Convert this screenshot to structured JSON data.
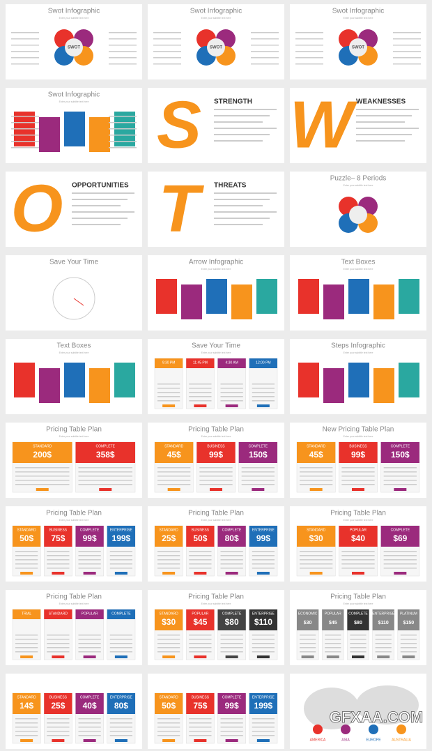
{
  "slides": [
    {
      "title": "Swot Infographic",
      "subtitle": "Enter your subtitle text here",
      "center": "SWOT"
    },
    {
      "title": "Swot Infographic",
      "subtitle": "Enter your subtitle text here",
      "center": "SWOT"
    },
    {
      "title": "Swot Infographic",
      "subtitle": "Enter your subtitle text here",
      "center": "SWOT"
    },
    {
      "title": "Swot Infographic",
      "subtitle": "Enter your subtitle text here"
    },
    {
      "title": "STRENGTH",
      "letter": "S"
    },
    {
      "title": "WEAKNESSES",
      "letter": "W"
    },
    {
      "title": "OPPORTUNITIES",
      "letter": "O"
    },
    {
      "title": "THREATS",
      "letter": "T"
    },
    {
      "title": "Puzzle– 8 Periods",
      "subtitle": "Enter your subtitle text here"
    },
    {
      "title": "Save Your Time"
    },
    {
      "title": "Arrow Infographic",
      "subtitle": "Enter your subtitle text here"
    },
    {
      "title": "Text Boxes",
      "subtitle": "Enter your subtitle text here"
    },
    {
      "title": "Text Boxes",
      "subtitle": "Enter your subtitle text here"
    },
    {
      "title": "Save Your Time",
      "subtitle": "Enter your subtitle text here",
      "cards": [
        {
          "name": "9:30 PM",
          "color": "#f7941d"
        },
        {
          "name": "11:45 PM",
          "color": "#e8322b"
        },
        {
          "name": "4:30 AM",
          "color": "#9b2a7d"
        },
        {
          "name": "12:00 PM",
          "color": "#1f6fb8"
        }
      ]
    },
    {
      "title": "Steps Infographic",
      "subtitle": "Enter your subtitle text here"
    },
    {
      "title": "Pricing Table Plan",
      "subtitle": "Enter your subtitle text here",
      "cards": [
        {
          "name": "STANDARD",
          "price": "200$",
          "color": "#f7941d"
        },
        {
          "name": "COMPLETE",
          "price": "358$",
          "color": "#e8322b"
        }
      ]
    },
    {
      "title": "Pricing Table Plan",
      "subtitle": "Enter your subtitle text here",
      "cards": [
        {
          "name": "STANDARD",
          "price": "45$",
          "color": "#f7941d"
        },
        {
          "name": "BUSINESS",
          "price": "99$",
          "color": "#e8322b"
        },
        {
          "name": "COMPLETE",
          "price": "150$",
          "color": "#9b2a7d"
        }
      ]
    },
    {
      "title": "New Pricing Table Plan",
      "subtitle": "Enter your subtitle text here",
      "cards": [
        {
          "name": "STANDARD",
          "price": "45$",
          "color": "#f7941d"
        },
        {
          "name": "BUSINESS",
          "price": "99$",
          "color": "#e8322b"
        },
        {
          "name": "COMPLETE",
          "price": "150$",
          "color": "#9b2a7d"
        }
      ]
    },
    {
      "title": "Pricing Table Plan",
      "subtitle": "Enter your subtitle text here",
      "cards": [
        {
          "name": "STANDARD",
          "price": "50$",
          "color": "#f7941d"
        },
        {
          "name": "BUSINESS",
          "price": "75$",
          "color": "#e8322b"
        },
        {
          "name": "COMPLETE",
          "price": "99$",
          "color": "#9b2a7d"
        },
        {
          "name": "ENTERPRISE",
          "price": "199$",
          "color": "#1f6fb8"
        }
      ]
    },
    {
      "title": "Pricing Table Plan",
      "subtitle": "Enter your subtitle text here",
      "cards": [
        {
          "name": "STANDARD",
          "price": "25$",
          "color": "#f7941d"
        },
        {
          "name": "BUSINESS",
          "price": "50$",
          "color": "#e8322b"
        },
        {
          "name": "COMPLETE",
          "price": "80$",
          "color": "#9b2a7d"
        },
        {
          "name": "ENTERPRISE",
          "price": "99$",
          "color": "#1f6fb8"
        }
      ]
    },
    {
      "title": "Pricing Table Plan",
      "subtitle": "Enter your subtitle text here",
      "cards": [
        {
          "name": "STANDARD",
          "price": "$30",
          "color": "#f7941d"
        },
        {
          "name": "POPULAR",
          "price": "$40",
          "color": "#e8322b"
        },
        {
          "name": "COMPLETE",
          "price": "$69",
          "color": "#9b2a7d"
        }
      ]
    },
    {
      "title": "Pricing Table Plan",
      "subtitle": "Enter your subtitle text here",
      "cards": [
        {
          "name": "TRIAL",
          "color": "#f7941d"
        },
        {
          "name": "STANDARD",
          "color": "#e8322b"
        },
        {
          "name": "POPULAR",
          "color": "#9b2a7d"
        },
        {
          "name": "COMPLETE",
          "color": "#1f6fb8"
        }
      ]
    },
    {
      "title": "Pricing Table Plan",
      "subtitle": "Enter your subtitle text here",
      "cards": [
        {
          "name": "STANDARD",
          "price": "$30",
          "color": "#f7941d"
        },
        {
          "name": "POPULAR",
          "price": "$45",
          "color": "#e8322b"
        },
        {
          "name": "COMPLETE",
          "price": "$80",
          "color": "#444444"
        },
        {
          "name": "ENTERPRISE",
          "price": "$110",
          "color": "#333333"
        }
      ]
    },
    {
      "title": "Pricing Table Plan",
      "subtitle": "Enter your subtitle text here",
      "cards": [
        {
          "name": "ECONOMIC",
          "price": "$30",
          "color": "#888888"
        },
        {
          "name": "POPULAR",
          "price": "$45",
          "color": "#888888"
        },
        {
          "name": "COMPLETE",
          "price": "$80",
          "color": "#333333"
        },
        {
          "name": "ENTERPRISE",
          "price": "$110",
          "color": "#888888"
        },
        {
          "name": "PLATINUM",
          "price": "$150",
          "color": "#888888"
        }
      ]
    },
    {
      "cards": [
        {
          "name": "STANDARD",
          "price": "14$",
          "color": "#f7941d"
        },
        {
          "name": "BUSINESS",
          "price": "25$",
          "color": "#e8322b"
        },
        {
          "name": "COMPLETE",
          "price": "40$",
          "color": "#9b2a7d"
        },
        {
          "name": "ENTERPRISE",
          "price": "80$",
          "color": "#1f6fb8"
        }
      ]
    },
    {
      "cards": [
        {
          "name": "STANDARD",
          "price": "50$",
          "color": "#f7941d"
        },
        {
          "name": "BUSINESS",
          "price": "75$",
          "color": "#e8322b"
        },
        {
          "name": "COMPLETE",
          "price": "99$",
          "color": "#9b2a7d"
        },
        {
          "name": "ENTERPRISE",
          "price": "199$",
          "color": "#1f6fb8"
        }
      ]
    },
    {
      "labels": [
        "AMERICA",
        "ASIA",
        "EUROPE",
        "AUSTRALIA"
      ]
    }
  ],
  "watermark": "GFXAA.COM"
}
